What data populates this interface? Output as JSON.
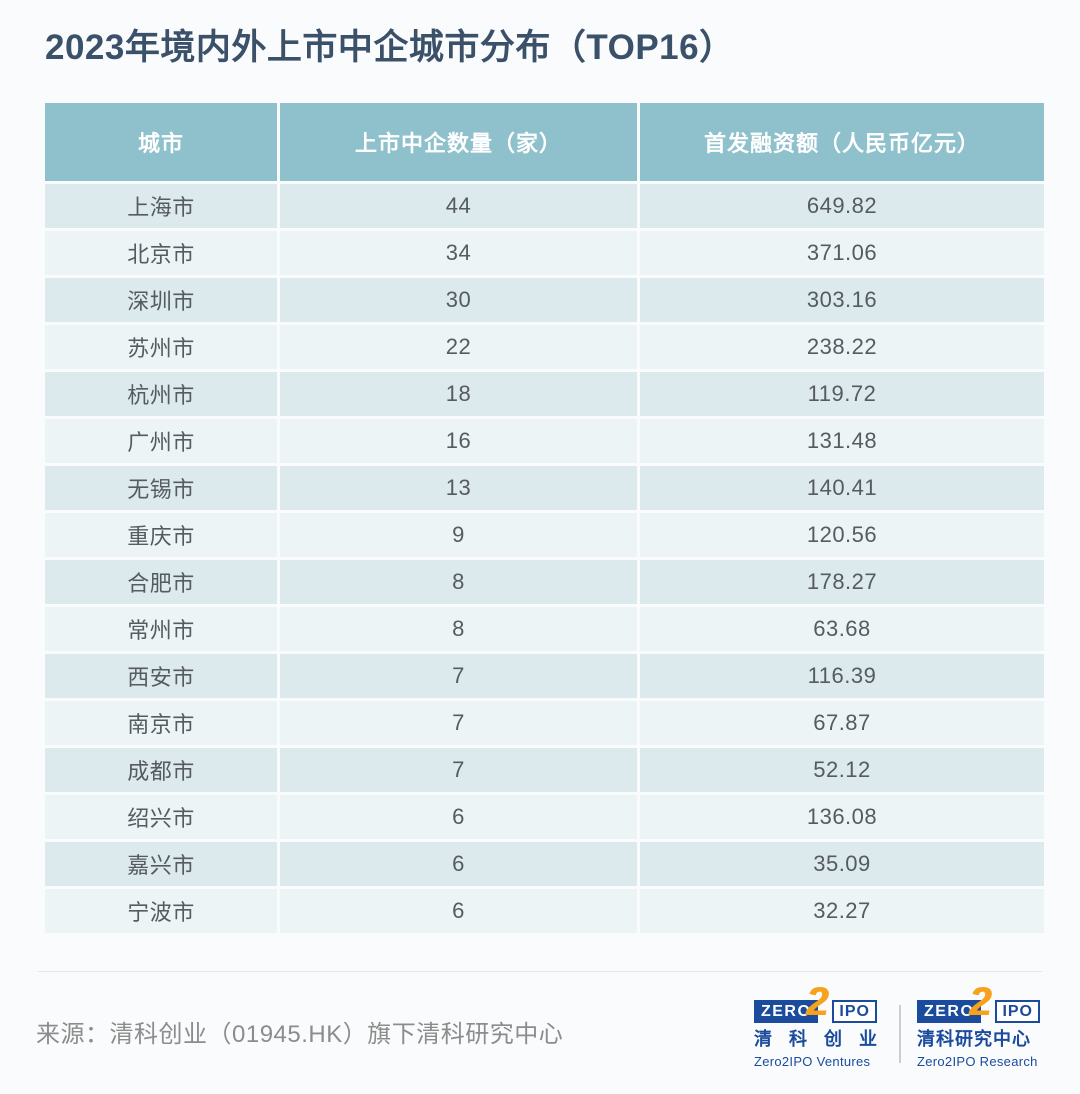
{
  "title": "2023年境内外上市中企城市分布（TOP16）",
  "chart_data": {
    "type": "table",
    "title": "2023年境内外上市中企城市分布（TOP16）",
    "columns": [
      "城市",
      "上市中企数量（家）",
      "首发融资额（人民币亿元）"
    ],
    "rows": [
      [
        "上海市",
        44,
        "649.82"
      ],
      [
        "北京市",
        34,
        "371.06"
      ],
      [
        "深圳市",
        30,
        "303.16"
      ],
      [
        "苏州市",
        22,
        "238.22"
      ],
      [
        "杭州市",
        18,
        "119.72"
      ],
      [
        "广州市",
        16,
        "131.48"
      ],
      [
        "无锡市",
        13,
        "140.41"
      ],
      [
        "重庆市",
        9,
        "120.56"
      ],
      [
        "合肥市",
        8,
        "178.27"
      ],
      [
        "常州市",
        8,
        "63.68"
      ],
      [
        "西安市",
        7,
        "116.39"
      ],
      [
        "南京市",
        7,
        "67.87"
      ],
      [
        "成都市",
        7,
        "52.12"
      ],
      [
        "绍兴市",
        6,
        "136.08"
      ],
      [
        "嘉兴市",
        6,
        "35.09"
      ],
      [
        "宁波市",
        6,
        "32.27"
      ]
    ],
    "layout": {
      "striped_rows": true,
      "header_position": "top"
    }
  },
  "footer": {
    "source": "来源：清科创业（01945.HK）旗下清科研究中心"
  },
  "branding": {
    "logos": [
      {
        "zero": "ZERO",
        "two": "2",
        "ipo": "IPO",
        "cn": "清 科 创 业",
        "en": "Zero2IPO Ventures"
      },
      {
        "zero": "ZERO",
        "two": "2",
        "ipo": "IPO",
        "cn": "清科研究中心",
        "en": "Zero2IPO Research"
      }
    ]
  },
  "colors": {
    "title": "#3A5169",
    "header_bg": "#8EC1CC",
    "header_text": "#FFFFFF",
    "row_odd_bg": "#DCE9ED",
    "row_even_bg": "#EDF4F6",
    "cell_text": "#555B60",
    "source_text": "#8C8C8C",
    "logo_blue": "#1A4B9D",
    "logo_orange": "#F8A11C",
    "page_bg": "#FAFBFC"
  }
}
